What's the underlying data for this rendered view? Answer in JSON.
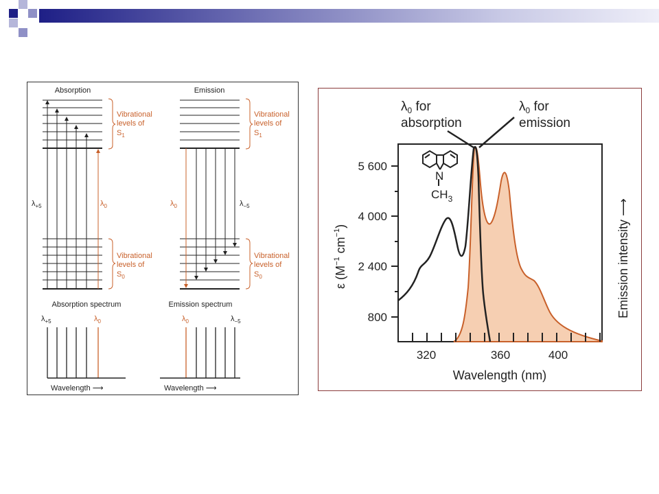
{
  "colors": {
    "accent": "#c8602a",
    "fill": "#f6cfb2",
    "line": "#222222",
    "title_dark": "#1e1f86",
    "title_light": "#8f90c6"
  },
  "left": {
    "absorption_title": "Absorption",
    "emission_title": "Emission",
    "vib_line1": "Vibrational",
    "vib_line2": "levels of",
    "s_letter": "S",
    "s1_sub": "1",
    "s0_sub": "0",
    "lambda": "λ",
    "plus5": "+5",
    "minus5": "−5",
    "zero": "0",
    "absorption_spectrum": "Absorption spectrum",
    "emission_spectrum": "Emission spectrum",
    "wavelength": "Wavelength"
  },
  "right": {
    "label_abs_line2": "for",
    "label_abs_line3": "absorption",
    "label_em_line2": "for",
    "label_em_line3": "emission",
    "y_tick_labels": [
      "5 600",
      "4 000",
      "2 400",
      "800"
    ],
    "x_tick_labels": [
      "320",
      "360",
      "400"
    ],
    "x_axis_label": "Wavelength (nm)",
    "y_axis_label_epsilon": "ε (M",
    "y_axis_label_minus1": "−1",
    "y_axis_label_cm": " cm",
    "y_axis_label_close": ")",
    "right_axis_label": "Emission intensity",
    "molecule_n": "N",
    "molecule_ch": "CH",
    "molecule_sub": "3"
  }
}
